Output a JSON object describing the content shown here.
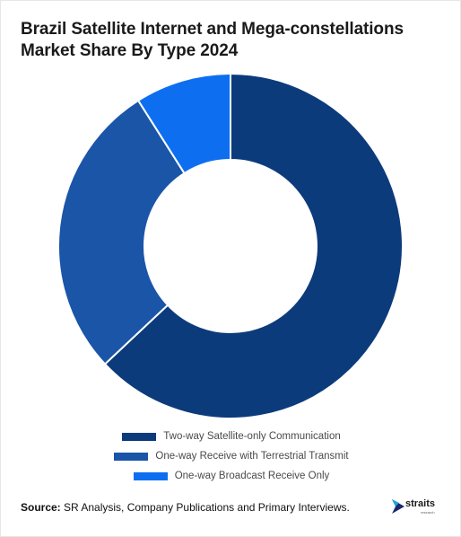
{
  "chart_data": {
    "type": "pie",
    "donut": true,
    "title": "Brazil Satellite Internet and Mega-constellations Market Share By Type 2024",
    "categories": [
      "Two-way Satellite-only Communication",
      "One-way Receive with Terrestrial Transmit",
      "One-way Broadcast Receive Only"
    ],
    "values": [
      63,
      28,
      9
    ],
    "colors": [
      "#0c3b7c",
      "#1a55a8",
      "#0d6ff0"
    ],
    "legend_position": "bottom"
  },
  "source": {
    "label": "Source:",
    "text": " SR Analysis, Company Publications and Primary Interviews."
  },
  "logo": {
    "word": "straits",
    "sub": "research"
  }
}
